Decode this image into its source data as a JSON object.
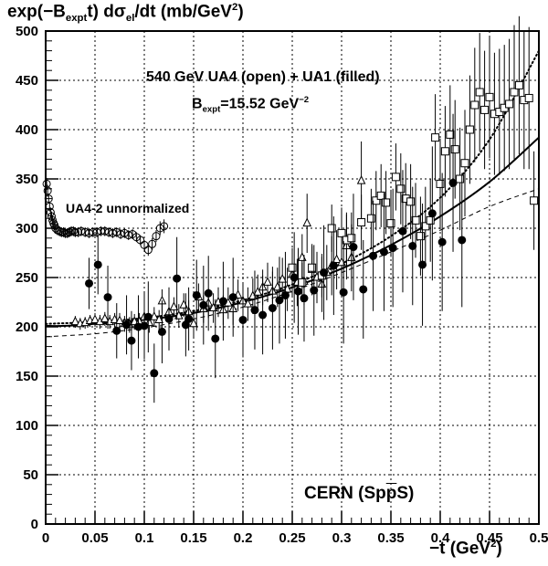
{
  "chart_data": {
    "type": "scatter",
    "ylabel": {
      "pre": "exp(−B",
      "sub1": "expt",
      "mid": "t) dσ",
      "sub2": "el",
      "post": "/dt  (mb/GeV",
      "sup": "2",
      "end": ")"
    },
    "xlabel": {
      "pre": "−t  (GeV",
      "sup": "2",
      "end": ")"
    },
    "annotations": {
      "line1": "540 GeV UA4 (open) + UA1 (filled)",
      "line2": {
        "pre": "B",
        "sub": "expt",
        "mid": "=15.52 GeV",
        "sup": "−2"
      },
      "line3": "UA4-2 unnormalized",
      "line4": "CERN (Sp",
      "line4_bar": "p",
      "line4_end": "S)"
    },
    "xlim": [
      0,
      0.5
    ],
    "ylim": [
      0,
      500
    ],
    "x_ticks": [
      "0",
      "0.05",
      "0.1",
      "0.15",
      "0.2",
      "0.25",
      "0.3",
      "0.35",
      "0.4",
      "0.45",
      "0.5"
    ],
    "y_ticks": [
      "0",
      "50",
      "100",
      "150",
      "200",
      "250",
      "300",
      "350",
      "400",
      "450",
      "500"
    ],
    "grid": true,
    "series": [
      {
        "marker": "open-circle",
        "points": [
          [
            0.001,
            345,
            6
          ],
          [
            0.002,
            338,
            6
          ],
          [
            0.003,
            330,
            5
          ],
          [
            0.004,
            322,
            5
          ],
          [
            0.005,
            316,
            5
          ],
          [
            0.006,
            312,
            5
          ],
          [
            0.007,
            308,
            5
          ],
          [
            0.008,
            305,
            5
          ],
          [
            0.009,
            303,
            5
          ],
          [
            0.01,
            300,
            5
          ],
          [
            0.012,
            298,
            5
          ],
          [
            0.014,
            297,
            5
          ],
          [
            0.016,
            296,
            5
          ],
          [
            0.018,
            296,
            5
          ],
          [
            0.02,
            295,
            5
          ],
          [
            0.022,
            295,
            5
          ],
          [
            0.024,
            296,
            5
          ],
          [
            0.026,
            297,
            5
          ],
          [
            0.028,
            297,
            5
          ],
          [
            0.03,
            296,
            5
          ],
          [
            0.033,
            296,
            5
          ],
          [
            0.036,
            297,
            5
          ],
          [
            0.04,
            296,
            5
          ],
          [
            0.044,
            295,
            5
          ],
          [
            0.048,
            296,
            5
          ],
          [
            0.052,
            296,
            5
          ],
          [
            0.056,
            297,
            5
          ],
          [
            0.06,
            297,
            5
          ],
          [
            0.064,
            296,
            5
          ],
          [
            0.068,
            295,
            5
          ],
          [
            0.072,
            296,
            5
          ],
          [
            0.076,
            294,
            5
          ],
          [
            0.08,
            295,
            5
          ],
          [
            0.084,
            293,
            5
          ],
          [
            0.088,
            294,
            5
          ],
          [
            0.092,
            291,
            5
          ],
          [
            0.096,
            288,
            5
          ],
          [
            0.1,
            283,
            5
          ],
          [
            0.104,
            278,
            6
          ],
          [
            0.108,
            284,
            6
          ],
          [
            0.112,
            292,
            6
          ],
          [
            0.116,
            300,
            7
          ],
          [
            0.12,
            302,
            7
          ]
        ]
      },
      {
        "marker": "open-triangle",
        "points": [
          [
            0.03,
            205,
            6
          ],
          [
            0.035,
            203,
            6
          ],
          [
            0.04,
            204,
            6
          ],
          [
            0.045,
            206,
            6
          ],
          [
            0.05,
            207,
            7
          ],
          [
            0.055,
            205,
            7
          ],
          [
            0.06,
            208,
            7
          ],
          [
            0.065,
            205,
            7
          ],
          [
            0.07,
            207,
            7
          ],
          [
            0.075,
            206,
            8
          ],
          [
            0.08,
            203,
            8
          ],
          [
            0.085,
            202,
            8
          ],
          [
            0.09,
            205,
            8
          ],
          [
            0.095,
            205,
            9
          ],
          [
            0.1,
            210,
            9
          ],
          [
            0.105,
            204,
            10
          ],
          [
            0.11,
            210,
            10
          ],
          [
            0.115,
            207,
            10
          ],
          [
            0.118,
            226,
            12
          ],
          [
            0.125,
            215,
            10
          ],
          [
            0.13,
            220,
            10
          ],
          [
            0.135,
            211,
            12
          ],
          [
            0.14,
            222,
            12
          ],
          [
            0.145,
            215,
            12
          ],
          [
            0.15,
            203,
            14
          ],
          [
            0.155,
            230,
            14
          ],
          [
            0.16,
            218,
            14
          ],
          [
            0.165,
            224,
            15
          ],
          [
            0.17,
            219,
            15
          ],
          [
            0.175,
            225,
            15
          ],
          [
            0.18,
            217,
            15
          ],
          [
            0.185,
            224,
            16
          ],
          [
            0.19,
            218,
            16
          ],
          [
            0.195,
            232,
            16
          ],
          [
            0.2,
            226,
            17
          ],
          [
            0.205,
            223,
            17
          ],
          [
            0.21,
            231,
            18
          ],
          [
            0.215,
            235,
            18
          ],
          [
            0.22,
            240,
            18
          ],
          [
            0.225,
            245,
            20
          ],
          [
            0.23,
            236,
            20
          ],
          [
            0.235,
            240,
            20
          ],
          [
            0.24,
            248,
            22
          ],
          [
            0.245,
            238,
            22
          ],
          [
            0.25,
            253,
            22
          ],
          [
            0.255,
            245,
            24
          ],
          [
            0.26,
            270,
            24
          ],
          [
            0.262,
            246,
            24
          ],
          [
            0.265,
            305,
            30
          ],
          [
            0.27,
            258,
            26
          ],
          [
            0.275,
            250,
            26
          ],
          [
            0.28,
            243,
            28
          ],
          [
            0.285,
            255,
            28
          ],
          [
            0.29,
            262,
            30
          ],
          [
            0.295,
            268,
            30
          ],
          [
            0.3,
            265,
            32
          ],
          [
            0.305,
            282,
            34
          ],
          [
            0.31,
            270,
            34
          ],
          [
            0.32,
            348,
            40
          ]
        ]
      },
      {
        "marker": "open-square",
        "points": [
          [
            0.25,
            260,
            20
          ],
          [
            0.26,
            245,
            20
          ],
          [
            0.27,
            260,
            22
          ],
          [
            0.28,
            252,
            22
          ],
          [
            0.29,
            300,
            24
          ],
          [
            0.3,
            295,
            26
          ],
          [
            0.305,
            288,
            26
          ],
          [
            0.31,
            290,
            26
          ],
          [
            0.32,
            306,
            28
          ],
          [
            0.33,
            310,
            30
          ],
          [
            0.335,
            328,
            30
          ],
          [
            0.34,
            333,
            32
          ],
          [
            0.345,
            326,
            32
          ],
          [
            0.35,
            305,
            34
          ],
          [
            0.355,
            352,
            34
          ],
          [
            0.36,
            340,
            36
          ],
          [
            0.365,
            330,
            36
          ],
          [
            0.37,
            327,
            38
          ],
          [
            0.375,
            308,
            38
          ],
          [
            0.38,
            292,
            40
          ],
          [
            0.385,
            302,
            40
          ],
          [
            0.39,
            308,
            42
          ],
          [
            0.395,
            392,
            44
          ],
          [
            0.4,
            345,
            46
          ],
          [
            0.405,
            378,
            46
          ],
          [
            0.41,
            395,
            50
          ],
          [
            0.415,
            380,
            50
          ],
          [
            0.42,
            350,
            52
          ],
          [
            0.425,
            366,
            54
          ],
          [
            0.43,
            400,
            55
          ],
          [
            0.435,
            425,
            58
          ],
          [
            0.44,
            438,
            60
          ],
          [
            0.445,
            420,
            60
          ],
          [
            0.45,
            433,
            62
          ],
          [
            0.455,
            416,
            62
          ],
          [
            0.46,
            418,
            64
          ],
          [
            0.465,
            422,
            64
          ],
          [
            0.47,
            426,
            66
          ],
          [
            0.475,
            438,
            68
          ],
          [
            0.48,
            445,
            70
          ],
          [
            0.485,
            430,
            70
          ],
          [
            0.49,
            432,
            72
          ],
          [
            0.495,
            328,
            50
          ]
        ]
      },
      {
        "marker": "filled-circle",
        "points": [
          [
            0.044,
            244,
            26
          ],
          [
            0.053,
            263,
            30
          ],
          [
            0.063,
            230,
            32
          ],
          [
            0.072,
            196,
            28
          ],
          [
            0.082,
            202,
            30
          ],
          [
            0.087,
            186,
            30
          ],
          [
            0.094,
            200,
            32
          ],
          [
            0.1,
            201,
            34
          ],
          [
            0.104,
            210,
            36
          ],
          [
            0.11,
            153,
            30
          ],
          [
            0.118,
            195,
            32
          ],
          [
            0.125,
            208,
            32
          ],
          [
            0.133,
            249,
            42
          ],
          [
            0.142,
            202,
            32
          ],
          [
            0.145,
            208,
            32
          ],
          [
            0.153,
            232,
            36
          ],
          [
            0.16,
            222,
            40
          ],
          [
            0.165,
            234,
            38
          ],
          [
            0.172,
            188,
            40
          ],
          [
            0.18,
            226,
            40
          ],
          [
            0.19,
            230,
            40
          ],
          [
            0.2,
            207,
            38
          ],
          [
            0.212,
            217,
            40
          ],
          [
            0.22,
            212,
            40
          ],
          [
            0.23,
            219,
            42
          ],
          [
            0.237,
            227,
            44
          ],
          [
            0.243,
            232,
            44
          ],
          [
            0.252,
            250,
            46
          ],
          [
            0.256,
            236,
            44
          ],
          [
            0.262,
            229,
            44
          ],
          [
            0.272,
            237,
            46
          ],
          [
            0.282,
            255,
            48
          ],
          [
            0.292,
            262,
            50
          ],
          [
            0.302,
            235,
            52
          ],
          [
            0.312,
            281,
            54
          ],
          [
            0.322,
            238,
            50
          ],
          [
            0.332,
            272,
            56
          ],
          [
            0.343,
            276,
            60
          ],
          [
            0.352,
            280,
            60
          ],
          [
            0.362,
            297,
            62
          ],
          [
            0.372,
            282,
            60
          ],
          [
            0.382,
            263,
            62
          ],
          [
            0.392,
            315,
            68
          ],
          [
            0.402,
            286,
            70
          ],
          [
            0.413,
            346,
            70
          ],
          [
            0.422,
            288,
            68
          ]
        ]
      }
    ],
    "curves": [
      {
        "style": "solid",
        "points": [
          [
            0,
            201
          ],
          [
            0.02,
            201
          ],
          [
            0.05,
            203
          ],
          [
            0.1,
            207
          ],
          [
            0.15,
            214
          ],
          [
            0.2,
            225
          ],
          [
            0.25,
            240
          ],
          [
            0.3,
            259
          ],
          [
            0.35,
            283
          ],
          [
            0.4,
            312
          ],
          [
            0.45,
            347
          ],
          [
            0.5,
            392
          ]
        ]
      },
      {
        "style": "dotted",
        "points": [
          [
            0,
            203
          ],
          [
            0.05,
            205
          ],
          [
            0.1,
            209
          ],
          [
            0.15,
            216
          ],
          [
            0.2,
            227
          ],
          [
            0.25,
            243
          ],
          [
            0.3,
            264
          ],
          [
            0.35,
            292
          ],
          [
            0.4,
            331
          ],
          [
            0.45,
            390
          ],
          [
            0.5,
            480
          ]
        ]
      },
      {
        "style": "dashed",
        "points": [
          [
            0,
            190
          ],
          [
            0.05,
            193
          ],
          [
            0.1,
            199
          ],
          [
            0.15,
            208
          ],
          [
            0.2,
            220
          ],
          [
            0.25,
            236
          ],
          [
            0.3,
            255
          ],
          [
            0.35,
            276
          ],
          [
            0.4,
            298
          ],
          [
            0.45,
            322
          ],
          [
            0.5,
            340
          ]
        ]
      }
    ]
  }
}
